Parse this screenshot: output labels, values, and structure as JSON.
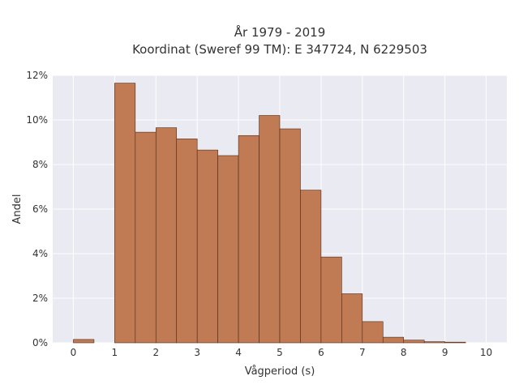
{
  "chart_data": {
    "type": "bar",
    "title_lines": [
      "År 1979 - 2019",
      "Koordinat (Sweref 99 TM): E 347724, N 6229503"
    ],
    "xlabel": "Vågperiod (s)",
    "ylabel": "Andel",
    "xlim": [
      -0.5,
      10.5
    ],
    "ylim": [
      0,
      0.12
    ],
    "x_ticks": [
      0,
      1,
      2,
      3,
      4,
      5,
      6,
      7,
      8,
      9,
      10
    ],
    "y_ticks": [
      0,
      0.02,
      0.04,
      0.06,
      0.08,
      0.1,
      0.12
    ],
    "y_tick_labels": [
      "0%",
      "2%",
      "4%",
      "6%",
      "8%",
      "10%",
      "12%"
    ],
    "bin_width": 0.5,
    "bins": [
      {
        "x0": 0.0,
        "value": 0.0015
      },
      {
        "x0": 1.0,
        "value": 0.1165
      },
      {
        "x0": 1.5,
        "value": 0.0945
      },
      {
        "x0": 2.0,
        "value": 0.0965
      },
      {
        "x0": 2.5,
        "value": 0.0915
      },
      {
        "x0": 3.0,
        "value": 0.0865
      },
      {
        "x0": 3.5,
        "value": 0.084
      },
      {
        "x0": 4.0,
        "value": 0.093
      },
      {
        "x0": 4.5,
        "value": 0.102
      },
      {
        "x0": 5.0,
        "value": 0.096
      },
      {
        "x0": 5.5,
        "value": 0.0685
      },
      {
        "x0": 6.0,
        "value": 0.0385
      },
      {
        "x0": 6.5,
        "value": 0.022
      },
      {
        "x0": 7.0,
        "value": 0.0095
      },
      {
        "x0": 7.5,
        "value": 0.0025
      },
      {
        "x0": 8.0,
        "value": 0.0012
      },
      {
        "x0": 8.5,
        "value": 0.0005
      },
      {
        "x0": 9.0,
        "value": 0.0003
      }
    ],
    "bar_color": "#c07a54",
    "plot_background": "#eaeaf2",
    "grid": true
  }
}
